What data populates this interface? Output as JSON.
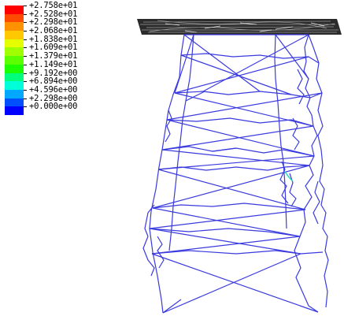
{
  "legend": {
    "labels": [
      "+2.758e+01",
      "+2.528e+01",
      "+2.298e+01",
      "+2.068e+01",
      "+1.838e+01",
      "+1.609e+01",
      "+1.379e+01",
      "+1.149e+01",
      "+9.192e+00",
      "+6.894e+00",
      "+4.596e+00",
      "+2.298e+00",
      "+0.000e+00"
    ],
    "colors": [
      "#ff0000",
      "#ff4a00",
      "#ff9200",
      "#ffc800",
      "#e6ff00",
      "#a0ff00",
      "#5cff00",
      "#1cff00",
      "#00ff7a",
      "#00ffd8",
      "#00a8ff",
      "#0050ff",
      "#0000ff"
    ]
  },
  "colors": {
    "mesh": "#3a3adf",
    "deck": "#2b2b2b",
    "highlight": "#19e0b0"
  }
}
